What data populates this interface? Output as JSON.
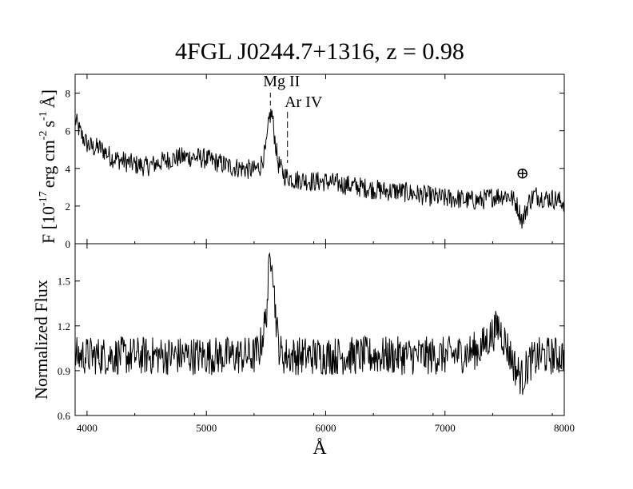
{
  "title": "4FGL J0244.7+1316, z = 0.98",
  "xlabel": "Å",
  "colors": {
    "line": "#000000",
    "background": "#ffffff"
  },
  "chart_data": [
    {
      "type": "line",
      "panel": "top",
      "ylabel_parts": [
        "F [10",
        "-17",
        "erg cm",
        "-2",
        "s",
        "-1",
        "Å]"
      ],
      "xlim": [
        3900,
        8000
      ],
      "ylim": [
        0,
        9
      ],
      "x_ticks": [
        4000,
        5000,
        6000,
        7000,
        8000
      ],
      "y_ticks": [
        "0",
        "2",
        "4",
        "6",
        "8"
      ],
      "grid": false,
      "series": [
        {
          "x": [
            3900,
            3950,
            4000,
            4050,
            4100,
            4150,
            4200,
            4300,
            4400,
            4500,
            4600,
            4700,
            4800,
            4900,
            5000,
            5100,
            5200,
            5300,
            5400,
            5450,
            5500,
            5530,
            5550,
            5570,
            5600,
            5630,
            5660,
            5700,
            5750,
            5800,
            5900,
            6000,
            6100,
            6200,
            6300,
            6400,
            6500,
            6600,
            6700,
            6800,
            6900,
            7000,
            7100,
            7200,
            7300,
            7400,
            7500,
            7550,
            7600,
            7650,
            7700,
            7750,
            7800,
            7850,
            7900,
            7950,
            8000
          ],
          "y": [
            6.6,
            5.8,
            5.3,
            5.1,
            5.1,
            4.9,
            4.6,
            4.4,
            4.2,
            4.1,
            4.3,
            4.5,
            4.6,
            4.6,
            4.5,
            4.3,
            4.1,
            4.0,
            3.9,
            4.1,
            5.0,
            6.8,
            6.9,
            5.8,
            4.3,
            3.9,
            3.6,
            3.5,
            3.4,
            3.4,
            3.3,
            3.3,
            3.2,
            3.1,
            3.0,
            2.9,
            2.8,
            2.8,
            2.7,
            2.6,
            2.5,
            2.4,
            2.4,
            2.3,
            2.3,
            2.5,
            2.6,
            2.5,
            2.1,
            1.2,
            2.2,
            2.6,
            2.5,
            2.4,
            2.4,
            2.3,
            2.2
          ],
          "noise": 0.55
        }
      ],
      "annotations": [
        {
          "text": "Mg II",
          "x": 5550,
          "y": 7.0
        },
        {
          "text": "Ar IV",
          "x": 5680,
          "y": 5.9
        },
        {
          "text": "⊕",
          "x": 7650,
          "y": 3.8
        }
      ]
    },
    {
      "type": "line",
      "panel": "bottom",
      "ylabel": "Normalized Flux",
      "xlabel": "Å",
      "xlim": [
        3900,
        8000
      ],
      "ylim": [
        0.6,
        1.75
      ],
      "x_ticks": [
        4000,
        5000,
        6000,
        7000,
        8000
      ],
      "x_tick_labels": [
        "4000",
        "5000",
        "6000",
        "7000",
        "8000"
      ],
      "y_ticks": [
        "0.6",
        "0.9",
        "1.2",
        "1.5"
      ],
      "grid": false,
      "series": [
        {
          "x": [
            3900,
            4000,
            4200,
            4400,
            4600,
            4800,
            5000,
            5200,
            5400,
            5450,
            5500,
            5530,
            5550,
            5570,
            5600,
            5630,
            5700,
            5800,
            6000,
            6200,
            6400,
            6600,
            6800,
            7000,
            7200,
            7300,
            7400,
            7450,
            7500,
            7550,
            7600,
            7650,
            7700,
            7800,
            7900,
            8000
          ],
          "y": [
            1.0,
            1.0,
            1.0,
            1.0,
            1.0,
            1.0,
            1.0,
            1.0,
            1.0,
            1.05,
            1.25,
            1.62,
            1.72,
            1.4,
            1.1,
            1.0,
            1.0,
            1.0,
            1.0,
            1.0,
            1.0,
            1.0,
            1.0,
            1.0,
            1.02,
            1.05,
            1.15,
            1.2,
            1.1,
            1.0,
            0.9,
            0.85,
            0.95,
            1.0,
            1.0,
            1.0
          ],
          "noise": 0.13
        }
      ]
    }
  ]
}
